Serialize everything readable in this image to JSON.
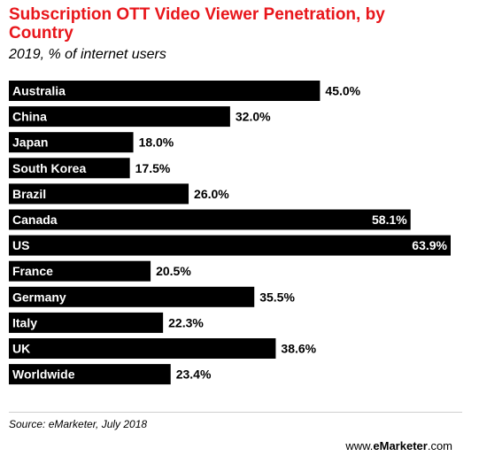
{
  "chart_data": {
    "type": "bar",
    "orientation": "horizontal",
    "title": "Subscription OTT Video Viewer Penetration, by Country",
    "subtitle": "2019, % of internet users",
    "categories": [
      "Australia",
      "China",
      "Japan",
      "South Korea",
      "Brazil",
      "Canada",
      "US",
      "France",
      "Germany",
      "Italy",
      "UK",
      "Worldwide"
    ],
    "values": [
      45.0,
      32.0,
      18.0,
      17.5,
      26.0,
      58.1,
      63.9,
      20.5,
      35.5,
      22.3,
      38.6,
      23.4
    ],
    "value_labels": [
      "45.0%",
      "32.0%",
      "18.0%",
      "17.5%",
      "26.0%",
      "58.1%",
      "63.9%",
      "20.5%",
      "35.5%",
      "22.3%",
      "38.6%",
      "23.4%"
    ],
    "xlim": [
      0,
      63.9
    ],
    "grid": false,
    "bar_color": "#000000",
    "title_color": "#e8161b"
  },
  "footer": {
    "source": "Source: eMarketer, July 2018",
    "brand_prefix": "www.",
    "brand_name": "eMarketer",
    "brand_suffix": ".com"
  }
}
